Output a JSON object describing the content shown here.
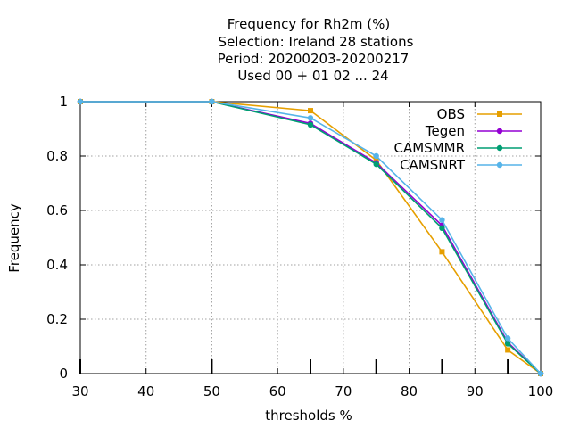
{
  "chart_data": {
    "type": "line",
    "title_lines": [
      "Frequency  for Rh2m (%)",
      "Selection: Ireland     28 stations",
      "Period: 20200203-20200217",
      "Used  00 + 01 02 ... 24"
    ],
    "xlabel": "thresholds %",
    "ylabel": "Frequency",
    "xlim": [
      30,
      100
    ],
    "ylim": [
      0,
      1
    ],
    "x_ticks": [
      "30",
      "40",
      "50",
      "60",
      "70",
      "80",
      "90",
      "100"
    ],
    "y_ticks": [
      "0",
      "0.2",
      "0.4",
      "0.6",
      "0.8",
      "1"
    ],
    "threshold_marks": [
      50,
      65,
      75,
      85,
      95
    ],
    "grid": true,
    "legend_position": "top-right",
    "x": [
      30,
      50,
      65,
      75,
      85,
      95,
      100
    ],
    "series": [
      {
        "name": "OBS",
        "color": "#e69f00",
        "marker": "square-icon",
        "values": [
          1,
          1,
          0.967,
          0.785,
          0.448,
          0.087,
          0
        ]
      },
      {
        "name": "Tegen",
        "color": "#9400d3",
        "marker": "circle-icon",
        "values": [
          1,
          1,
          0.92,
          0.775,
          0.545,
          0.115,
          0
        ]
      },
      {
        "name": "CAMSMMR",
        "color": "#009e73",
        "marker": "circle-icon",
        "values": [
          1,
          1,
          0.915,
          0.77,
          0.535,
          0.11,
          0
        ]
      },
      {
        "name": "CAMSNRT",
        "color": "#56b4e9",
        "marker": "circle-icon",
        "values": [
          1,
          1,
          0.94,
          0.8,
          0.565,
          0.13,
          0
        ]
      }
    ]
  }
}
